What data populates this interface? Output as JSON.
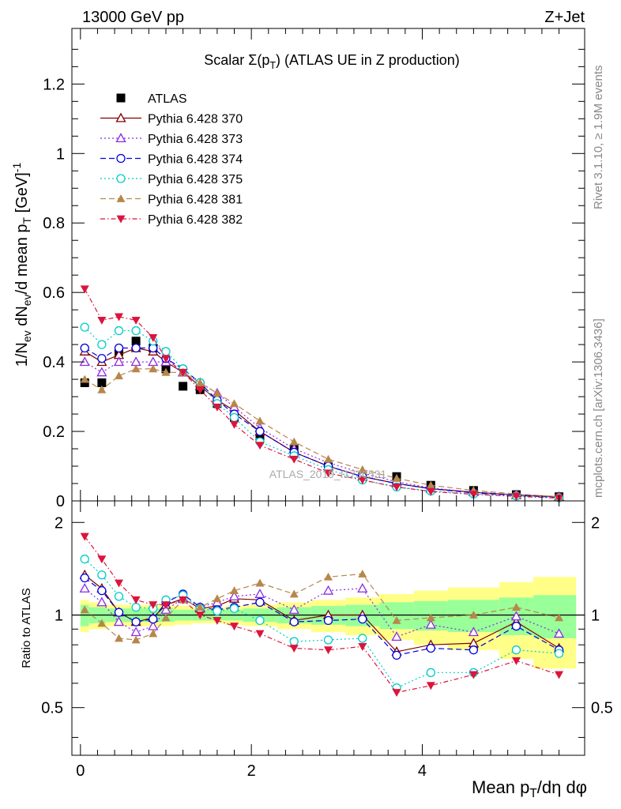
{
  "header": {
    "left": "13000 GeV pp",
    "right": "Z+Jet"
  },
  "side": {
    "rivet": "Rivet 3.1.10, ≥ 1.9M events",
    "mcplots": "mcplots.cern.ch [arXiv:1306.3436]"
  },
  "chart_data": [
    {
      "type": "scatter",
      "panel": "main",
      "title": "Scalar Σ(p_T) (ATLAS UE in Z production)",
      "ylabel": "1/N_ev dN_ev/d mean p_T [GeV]^-1",
      "watermark": "ATLAS_2019_I1736531",
      "xlim": [
        -0.1,
        5.9
      ],
      "ylim": [
        0,
        1.36
      ],
      "yticks": [
        "0",
        "0.2",
        "0.4",
        "0.6",
        "0.8",
        "1",
        "1.2"
      ],
      "x": [
        0.05,
        0.25,
        0.45,
        0.65,
        0.85,
        1.0,
        1.2,
        1.4,
        1.6,
        1.8,
        2.1,
        2.5,
        2.9,
        3.3,
        3.7,
        4.1,
        4.6,
        5.1,
        5.6
      ],
      "series": [
        {
          "name": "ATLAS",
          "color": "#000000",
          "marker": "square-filled",
          "line": "none",
          "values": [
            0.34,
            0.34,
            0.43,
            0.46,
            0.44,
            0.38,
            0.33,
            0.32,
            0.28,
            0.24,
            0.18,
            0.15,
            0.1,
            0.07,
            0.07,
            0.045,
            0.03,
            0.018,
            0.012
          ]
        },
        {
          "name": "Pythia 6.428 370",
          "color": "#800000",
          "marker": "triangle-up-open",
          "line": "solid",
          "values": [
            0.43,
            0.4,
            0.42,
            0.44,
            0.43,
            0.4,
            0.37,
            0.33,
            0.29,
            0.26,
            0.2,
            0.14,
            0.1,
            0.07,
            0.05,
            0.035,
            0.025,
            0.017,
            0.012
          ]
        },
        {
          "name": "Pythia 6.428 373",
          "color": "#8a2be2",
          "marker": "triangle-up-open",
          "line": "dotted",
          "values": [
            0.4,
            0.37,
            0.4,
            0.4,
            0.4,
            0.4,
            0.37,
            0.34,
            0.31,
            0.27,
            0.21,
            0.15,
            0.11,
            0.08,
            0.055,
            0.037,
            0.025,
            0.017,
            0.011
          ]
        },
        {
          "name": "Pythia 6.428 374",
          "color": "#0000dd",
          "marker": "circle-open",
          "line": "dashed",
          "values": [
            0.44,
            0.41,
            0.44,
            0.44,
            0.44,
            0.41,
            0.38,
            0.34,
            0.29,
            0.25,
            0.2,
            0.14,
            0.1,
            0.07,
            0.05,
            0.035,
            0.023,
            0.016,
            0.01
          ]
        },
        {
          "name": "Pythia 6.428 375",
          "color": "#00cccc",
          "marker": "circle-open",
          "line": "dotted",
          "values": [
            0.5,
            0.45,
            0.49,
            0.49,
            0.46,
            0.43,
            0.38,
            0.34,
            0.28,
            0.24,
            0.17,
            0.13,
            0.09,
            0.06,
            0.04,
            0.028,
            0.02,
            0.014,
            0.009
          ]
        },
        {
          "name": "Pythia 6.428 381",
          "color": "#b8864b",
          "marker": "triangle-up-filled",
          "line": "dashed",
          "values": [
            0.35,
            0.32,
            0.36,
            0.38,
            0.38,
            0.37,
            0.37,
            0.34,
            0.31,
            0.28,
            0.23,
            0.17,
            0.12,
            0.09,
            0.065,
            0.045,
            0.03,
            0.02,
            0.012
          ]
        },
        {
          "name": "Pythia 6.428 382",
          "color": "#dc143c",
          "marker": "triangle-down-filled",
          "line": "dashdot",
          "values": [
            0.61,
            0.52,
            0.53,
            0.52,
            0.47,
            0.41,
            0.37,
            0.32,
            0.27,
            0.22,
            0.16,
            0.12,
            0.08,
            0.06,
            0.04,
            0.027,
            0.019,
            0.013,
            0.008
          ]
        }
      ]
    },
    {
      "type": "scatter",
      "panel": "ratio",
      "xlabel": "Mean p_T/dη dφ",
      "ylabel": "Ratio to ATLAS",
      "xlim": [
        -0.1,
        5.9
      ],
      "xticks": [
        "0",
        "2",
        "4"
      ],
      "yticks": [
        "0.5",
        "1",
        "2"
      ],
      "ylim": [
        0.35,
        2.35
      ],
      "reference": 1,
      "band_edges": [
        0.0,
        0.1,
        0.3,
        0.5,
        0.7,
        0.9,
        1.1,
        1.3,
        1.5,
        1.7,
        1.9,
        2.3,
        2.7,
        3.1,
        3.5,
        3.9,
        4.3,
        4.9,
        5.3,
        5.8
      ],
      "band_inner": [
        0.08,
        0.06,
        0.05,
        0.05,
        0.05,
        0.05,
        0.04,
        0.04,
        0.04,
        0.04,
        0.05,
        0.06,
        0.07,
        0.08,
        0.1,
        0.11,
        0.12,
        0.14,
        0.16
      ],
      "band_outer": [
        0.12,
        0.1,
        0.08,
        0.08,
        0.08,
        0.08,
        0.07,
        0.06,
        0.06,
        0.07,
        0.08,
        0.1,
        0.12,
        0.14,
        0.17,
        0.2,
        0.23,
        0.28,
        0.33
      ],
      "series": [
        {
          "name": "Pythia 6.428 370",
          "values": [
            1.35,
            1.22,
            1.02,
            0.95,
            0.98,
            1.08,
            1.13,
            1.05,
            1.07,
            1.13,
            1.12,
            0.96,
            1.0,
            1.0,
            0.76,
            0.8,
            0.81,
            0.95,
            0.78
          ]
        },
        {
          "name": "Pythia 6.428 373",
          "values": [
            1.22,
            1.1,
            0.95,
            0.88,
            0.92,
            1.04,
            1.13,
            1.06,
            1.1,
            1.15,
            1.17,
            1.04,
            1.2,
            1.22,
            0.85,
            0.93,
            0.88,
            0.99,
            0.87
          ]
        },
        {
          "name": "Pythia 6.428 374",
          "values": [
            1.32,
            1.2,
            1.02,
            0.95,
            0.97,
            1.1,
            1.17,
            1.06,
            1.04,
            1.06,
            1.1,
            0.95,
            0.96,
            0.97,
            0.74,
            0.78,
            0.77,
            0.92,
            0.77
          ]
        },
        {
          "name": "Pythia 6.428 375",
          "values": [
            1.52,
            1.35,
            1.15,
            1.06,
            1.05,
            1.12,
            1.16,
            1.05,
            1.03,
            1.05,
            0.96,
            0.82,
            0.83,
            0.84,
            0.58,
            0.65,
            0.65,
            0.77,
            0.75
          ]
        },
        {
          "name": "Pythia 6.428 381",
          "values": [
            1.04,
            0.94,
            0.84,
            0.83,
            0.87,
            0.98,
            1.12,
            1.06,
            1.13,
            1.2,
            1.27,
            1.17,
            1.33,
            1.36,
            0.96,
            0.98,
            1.0,
            1.06,
            0.98
          ]
        },
        {
          "name": "Pythia 6.428 382",
          "values": [
            1.8,
            1.52,
            1.27,
            1.12,
            1.08,
            1.08,
            1.12,
            1.0,
            0.96,
            0.92,
            0.87,
            0.78,
            0.77,
            0.79,
            0.56,
            0.59,
            0.64,
            0.71,
            0.64
          ]
        }
      ]
    }
  ]
}
